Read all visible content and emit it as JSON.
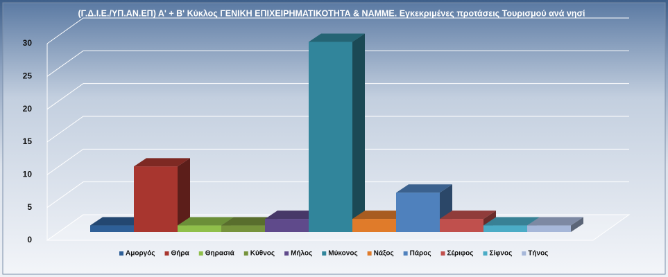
{
  "chart_data": {
    "type": "bar3d",
    "title": "(Γ.Δ.Ι.Ε./ΥΠ.ΑΝ.ΕΠ) Α' + Β' Κύκλος ΓΕΝΙΚΗ ΕΠΙΧΕΙΡΗΜΑΤΙΚΟΤΗΤΑ & ΝΑΜΜΕ. Εγκεκριμένες προτάσεις  Τουρισμού ανά νησί",
    "ylim": [
      0,
      30
    ],
    "yticks": [
      0,
      5,
      10,
      15,
      20,
      25,
      30
    ],
    "grid": true,
    "legend": "bottom",
    "series": [
      {
        "name": "Αμοργός",
        "color": "#2e5f97",
        "values": [
          1
        ]
      },
      {
        "name": "Θήρα",
        "color": "#a8362f",
        "values": [
          10
        ]
      },
      {
        "name": "Θηρασιά",
        "color": "#8fbf4a",
        "values": [
          1
        ]
      },
      {
        "name": "Κύθνος",
        "color": "#76933c",
        "values": [
          1
        ]
      },
      {
        "name": "Μήλος",
        "color": "#5f4a8b",
        "values": [
          2
        ]
      },
      {
        "name": "Μύκονος",
        "color": "#31859b",
        "values": [
          29
        ]
      },
      {
        "name": "Νάξος",
        "color": "#e07b2a",
        "values": [
          2
        ]
      },
      {
        "name": "Πάρος",
        "color": "#4f81bd",
        "values": [
          6
        ]
      },
      {
        "name": "Σέριφος",
        "color": "#c0504d",
        "values": [
          2
        ]
      },
      {
        "name": "Σίφνος",
        "color": "#4bacc6",
        "values": [
          1
        ]
      },
      {
        "name": "Τήνος",
        "color": "#a6b7d9",
        "values": [
          1
        ]
      }
    ]
  }
}
